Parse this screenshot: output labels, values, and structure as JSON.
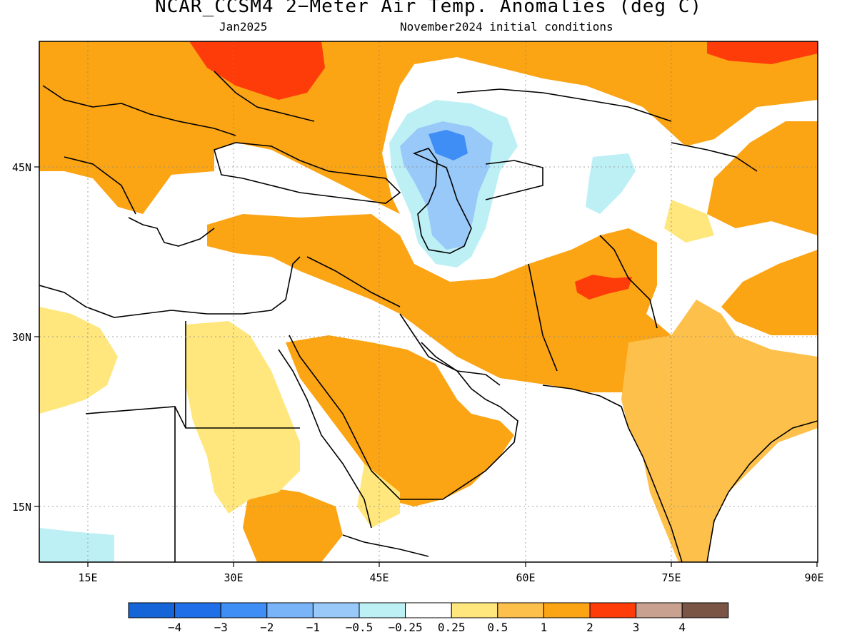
{
  "title": "NCAR_CCSM4 2−Meter Air Temp. Anomalies (deg C)",
  "subtitle_left": "Jan2025",
  "subtitle_right": "November2024 initial conditions",
  "map": {
    "lon_range": [
      10,
      90
    ],
    "lat_range": [
      10,
      55
    ],
    "lon_ticks": [
      "15E",
      "30E",
      "45E",
      "60E",
      "75E",
      "90E"
    ],
    "lat_ticks": [
      "45N",
      "30N",
      "15N"
    ],
    "grid": "dotted"
  },
  "colorbar": {
    "colors": [
      "#1565d8",
      "#1e6fe8",
      "#3f8ef5",
      "#79b4f8",
      "#98c9f9",
      "#bdf0f4",
      "#ffffff",
      "#ffe77d",
      "#fdc04a",
      "#fba414",
      "#fe3c0a",
      "#c9a190",
      "#7a5546"
    ],
    "labels": [
      "−4",
      "−3",
      "−2",
      "−1",
      "−0.5",
      "−0.25",
      "0.25",
      "0.5",
      "1",
      "2",
      "3",
      "4"
    ]
  }
}
